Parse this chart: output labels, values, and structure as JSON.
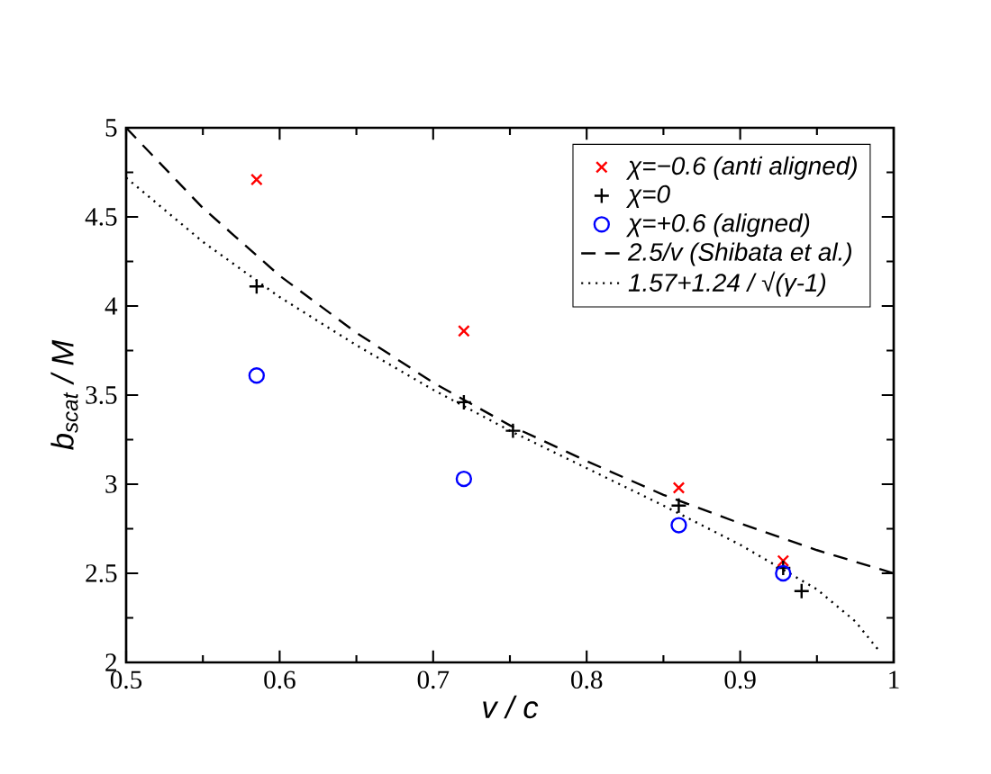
{
  "chart_data": {
    "type": "scatter",
    "xlabel": "v / c",
    "ylabel": "b$_{scat}$ / M",
    "xlim": [
      0.5,
      1
    ],
    "ylim": [
      2,
      5
    ],
    "xticks": [
      0.5,
      0.6,
      0.7,
      0.8,
      0.9,
      1
    ],
    "yticks": [
      2,
      2.5,
      3,
      3.5,
      4,
      4.5,
      5
    ],
    "grid": false,
    "legend": "top right",
    "series": [
      {
        "name": "χ=−0.6  (anti aligned)",
        "color": "#ff0000",
        "marker": "cross",
        "x": [
          0.585,
          0.72,
          0.86,
          0.928
        ],
        "values": [
          4.71,
          3.86,
          2.98,
          2.57
        ]
      },
      {
        "name": "χ=0",
        "color": "#000000",
        "marker": "plus",
        "x": [
          0.585,
          0.72,
          0.752,
          0.86,
          0.928,
          0.94
        ],
        "values": [
          4.11,
          3.46,
          3.3,
          2.88,
          2.53,
          2.4
        ]
      },
      {
        "name": "χ=+0.6  (aligned)",
        "color": "#0000ff",
        "marker": "circle",
        "x": [
          0.585,
          0.72,
          0.86,
          0.928
        ],
        "values": [
          3.61,
          3.03,
          2.77,
          2.5
        ]
      },
      {
        "name": "2.5/v  (Shibata et al.)",
        "type": "line",
        "line_style": "dashed",
        "marker": "none",
        "color": "#000000",
        "x": [
          0.5,
          0.55,
          0.6,
          0.65,
          0.7,
          0.75,
          0.8,
          0.85,
          0.9,
          0.95,
          1
        ],
        "values": [
          5,
          4.55,
          4.17,
          3.85,
          3.57,
          3.33,
          3.13,
          2.94,
          2.78,
          2.63,
          2.5
        ]
      },
      {
        "name": "1.57+1.24 / √(γ-1)",
        "type": "line",
        "line_style": "dotted",
        "marker": "none",
        "color": "#000000",
        "x": [
          0.5,
          0.55,
          0.6,
          0.65,
          0.7,
          0.75,
          0.8,
          0.85,
          0.9,
          0.95,
          0.975,
          0.99
        ],
        "values": [
          4.72,
          4.36,
          4.05,
          3.78,
          3.53,
          3.3,
          3.09,
          2.88,
          2.66,
          2.41,
          2.23,
          2.07
        ]
      }
    ]
  }
}
